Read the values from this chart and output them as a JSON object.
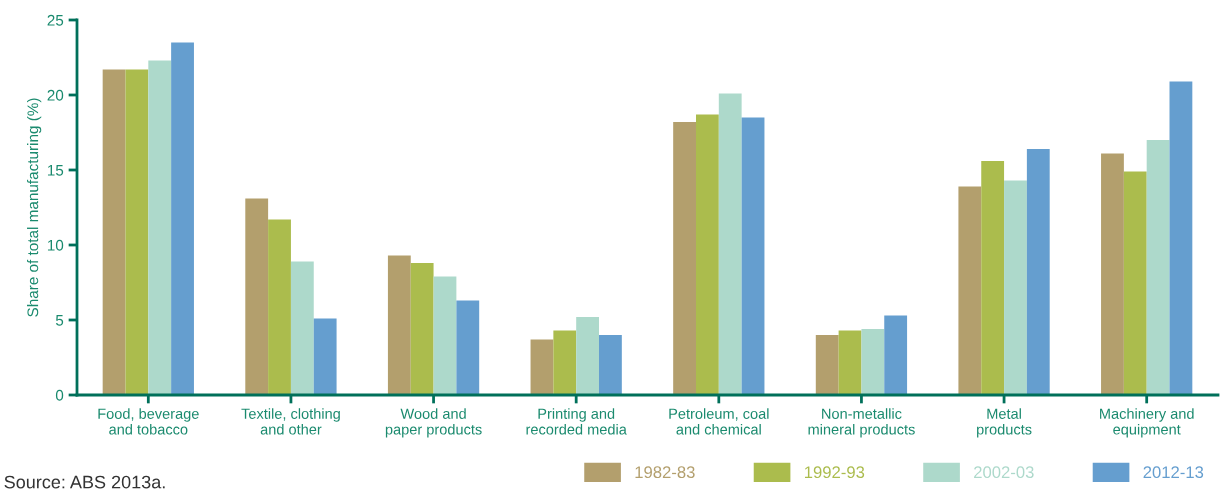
{
  "chart_data": {
    "type": "bar",
    "ylabel": "Share of total manufacturing (%)",
    "categories": [
      "Food, beverage\nand tobacco",
      "Textile, clothing\nand other",
      "Wood and\npaper products",
      "Printing and\nrecorded media",
      "Petroleum, coal\nand chemical",
      "Non-metallic\nmineral products",
      "Metal\nproducts",
      "Machinery and\nequipment"
    ],
    "series": [
      {
        "name": "1982-83",
        "color": "#b39f6d",
        "values": [
          21.7,
          13.1,
          9.3,
          3.7,
          18.2,
          4.0,
          13.9,
          16.1
        ]
      },
      {
        "name": "1992-93",
        "color": "#abbc4d",
        "values": [
          21.7,
          11.7,
          8.8,
          4.3,
          18.7,
          4.3,
          15.6,
          14.9
        ]
      },
      {
        "name": "2002-03",
        "color": "#add9cb",
        "values": [
          22.3,
          8.9,
          7.9,
          5.2,
          20.1,
          4.4,
          14.3,
          17.0
        ]
      },
      {
        "name": "2012-13",
        "color": "#659ecf",
        "values": [
          23.5,
          5.1,
          6.3,
          4.0,
          18.5,
          5.3,
          16.4,
          20.9
        ]
      }
    ],
    "ylim": [
      0,
      25
    ],
    "yticks": [
      0,
      5,
      10,
      15,
      20,
      25
    ],
    "grid": false,
    "legend": "bottom right",
    "annotations": [
      "Source: ABS 2013a."
    ]
  }
}
